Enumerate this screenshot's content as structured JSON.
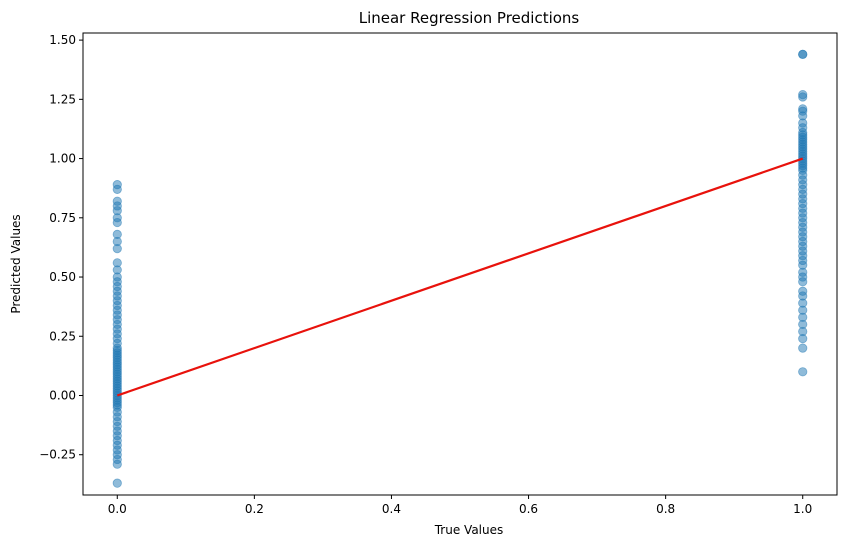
{
  "chart_data": {
    "type": "scatter",
    "title": "Linear Regression Predictions",
    "xlabel": "True Values",
    "ylabel": "Predicted Values",
    "xlim": [
      -0.05,
      1.05
    ],
    "ylim": [
      -0.42,
      1.53
    ],
    "x_ticks": [
      0.0,
      0.2,
      0.4,
      0.6,
      0.8,
      1.0
    ],
    "x_tick_labels": [
      "0.0",
      "0.2",
      "0.4",
      "0.6",
      "0.8",
      "1.0"
    ],
    "y_ticks": [
      -0.25,
      0.0,
      0.25,
      0.5,
      0.75,
      1.0,
      1.25,
      1.5
    ],
    "y_tick_labels": [
      "−0.25",
      "0.00",
      "0.25",
      "0.50",
      "0.75",
      "1.00",
      "1.25",
      "1.50"
    ],
    "grid": false,
    "point_color": "#1f77b4",
    "line_color": "#e8120c",
    "fit_line": {
      "x": [
        0,
        1
      ],
      "y": [
        0,
        1
      ]
    },
    "series": [
      {
        "x": 0,
        "y": [
          -0.37,
          -0.29,
          -0.27,
          -0.25,
          -0.23,
          -0.21,
          -0.19,
          -0.17,
          -0.15,
          -0.13,
          -0.11,
          -0.09,
          -0.07,
          -0.05,
          -0.04,
          -0.03,
          -0.02,
          -0.01,
          0.0,
          0.01,
          0.02,
          0.03,
          0.04,
          0.05,
          0.06,
          0.07,
          0.08,
          0.09,
          0.1,
          0.11,
          0.12,
          0.13,
          0.14,
          0.15,
          0.16,
          0.17,
          0.18,
          0.19,
          0.2,
          0.22,
          0.24,
          0.26,
          0.28,
          0.3,
          0.32,
          0.34,
          0.36,
          0.38,
          0.4,
          0.42,
          0.44,
          0.46,
          0.48,
          0.5,
          0.53,
          0.56,
          0.62,
          0.65,
          0.68,
          0.73,
          0.75,
          0.78,
          0.8,
          0.82,
          0.87,
          0.89
        ]
      },
      {
        "x": 1,
        "y": [
          0.1,
          0.2,
          0.24,
          0.27,
          0.3,
          0.33,
          0.36,
          0.39,
          0.42,
          0.44,
          0.48,
          0.5,
          0.52,
          0.55,
          0.57,
          0.59,
          0.61,
          0.63,
          0.65,
          0.67,
          0.69,
          0.71,
          0.73,
          0.75,
          0.77,
          0.79,
          0.81,
          0.83,
          0.85,
          0.87,
          0.89,
          0.91,
          0.93,
          0.95,
          0.96,
          0.97,
          0.98,
          0.99,
          1.0,
          1.01,
          1.02,
          1.03,
          1.04,
          1.05,
          1.06,
          1.07,
          1.08,
          1.09,
          1.1,
          1.11,
          1.13,
          1.15,
          1.18,
          1.2,
          1.21,
          1.26,
          1.27,
          1.44,
          1.44
        ]
      }
    ]
  }
}
